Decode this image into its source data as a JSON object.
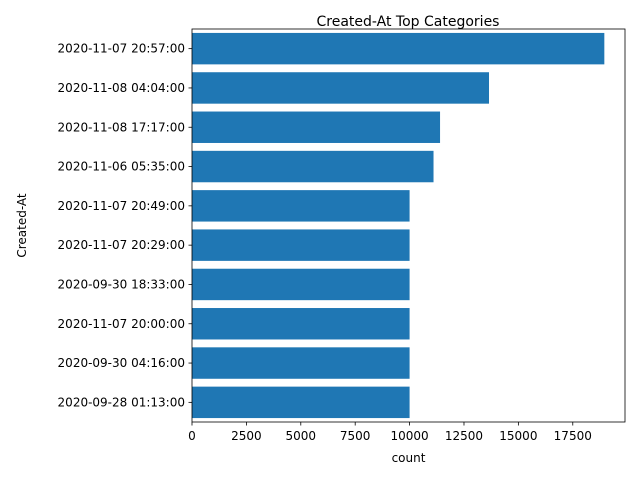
{
  "chart_data": {
    "type": "bar",
    "orientation": "horizontal",
    "title": "Created-At Top Categories",
    "xlabel": "count",
    "ylabel": "Created-At",
    "categories": [
      "2020-11-07 20:57:00",
      "2020-11-08 04:04:00",
      "2020-11-08 17:17:00",
      "2020-11-06 05:35:00",
      "2020-11-07 20:49:00",
      "2020-11-07 20:29:00",
      "2020-09-30 18:33:00",
      "2020-11-07 20:00:00",
      "2020-09-30 04:16:00",
      "2020-09-28 01:13:00"
    ],
    "values": [
      18950,
      13650,
      11400,
      11100,
      10000,
      10000,
      10000,
      10000,
      10000,
      10000
    ],
    "xlim": [
      0,
      19900
    ],
    "xticks": [
      0,
      2500,
      5000,
      7500,
      10000,
      12500,
      15000,
      17500
    ],
    "grid": false,
    "legend": "none",
    "bar_color": "#1f77b4"
  }
}
